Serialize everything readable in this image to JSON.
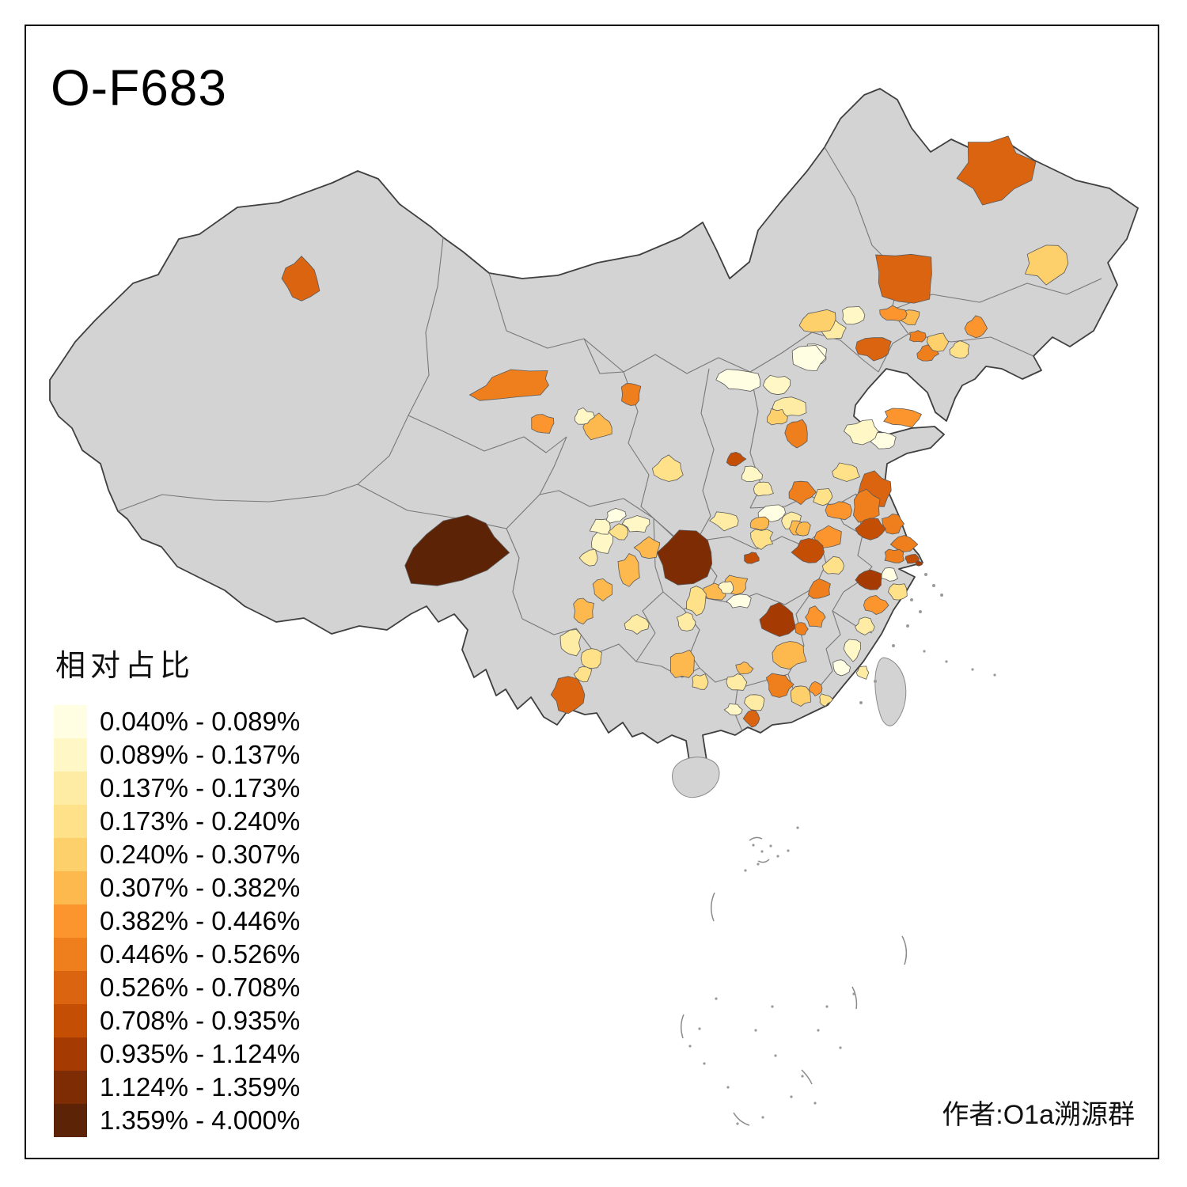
{
  "title": "O-F683",
  "attribution": "作者:O1a溯源群",
  "legend": {
    "title": "相对占比",
    "classes": [
      {
        "label": "0.040% - 0.089%",
        "color": "#FFFDE2"
      },
      {
        "label": "0.089% - 0.137%",
        "color": "#FFF7C5"
      },
      {
        "label": "0.137% - 0.173%",
        "color": "#FEECA4"
      },
      {
        "label": "0.173% - 0.240%",
        "color": "#FEE189"
      },
      {
        "label": "0.240% - 0.307%",
        "color": "#FDD06C"
      },
      {
        "label": "0.307% - 0.382%",
        "color": "#FDB84E"
      },
      {
        "label": "0.382% - 0.446%",
        "color": "#FC952E"
      },
      {
        "label": "0.446% - 0.526%",
        "color": "#EF7E1D"
      },
      {
        "label": "0.526% - 0.708%",
        "color": "#DB6410"
      },
      {
        "label": "0.708% - 0.935%",
        "color": "#C44E04"
      },
      {
        "label": "0.935% - 1.124%",
        "color": "#A53A03"
      },
      {
        "label": "1.124% - 1.359%",
        "color": "#7E2C04"
      },
      {
        "label": "1.359% - 4.000%",
        "color": "#5D2306"
      }
    ]
  },
  "map": {
    "base_color": "#D3D3D3",
    "country_border_color": "#3F3F3F",
    "province_border_color": "#737373",
    "patch_border_color": "#5A5A5A",
    "sea_color": "#FFFFFF",
    "patches": [
      [
        "heihe",
        1258,
        215,
        44,
        40,
        -12,
        9
      ],
      [
        "qiqihar",
        1143,
        352,
        42,
        33,
        15,
        9
      ],
      [
        "jiamusi",
        1322,
        333,
        27,
        23,
        0,
        5
      ],
      [
        "suihua-s",
        1148,
        400,
        14,
        10,
        0,
        6
      ],
      [
        "baicheng",
        1050,
        415,
        17,
        12,
        20,
        3
      ],
      [
        "daqing",
        1078,
        398,
        14,
        11,
        0,
        2
      ],
      [
        "tongliao",
        1030,
        448,
        16,
        13,
        0,
        1
      ],
      [
        "jinzhou",
        1104,
        440,
        21,
        14,
        0,
        9
      ],
      [
        "fushun",
        1160,
        425,
        10,
        8,
        0,
        8
      ],
      [
        "liaoyang",
        1172,
        447,
        12,
        10,
        0,
        8
      ],
      [
        "tieling",
        1185,
        432,
        12,
        11,
        0,
        5
      ],
      [
        "benxi",
        1213,
        442,
        12,
        10,
        0,
        4
      ],
      [
        "dandong",
        1233,
        415,
        12,
        14,
        0,
        7
      ],
      [
        "changchun-w",
        1128,
        397,
        16,
        9,
        0,
        7
      ],
      [
        "chengde",
        1035,
        407,
        22,
        14,
        -10,
        5
      ],
      [
        "beijing",
        1020,
        452,
        20,
        16,
        0,
        1
      ],
      [
        "langfang",
        983,
        487,
        16,
        12,
        0,
        2
      ],
      [
        "hohhot",
        933,
        480,
        26,
        14,
        0,
        1
      ],
      [
        "xinzhou",
        1000,
        515,
        20,
        12,
        0,
        3
      ],
      [
        "shijiazhuang",
        982,
        527,
        12,
        10,
        0,
        5
      ],
      [
        "xingtai-handan",
        1007,
        547,
        13,
        18,
        0,
        8
      ],
      [
        "jinchenig-dark",
        930,
        580,
        12,
        8,
        0,
        10
      ],
      [
        "luoyang",
        950,
        600,
        14,
        10,
        0,
        2
      ],
      [
        "zhengzhou-e",
        965,
        618,
        12,
        9,
        0,
        3
      ],
      [
        "yantai-weihai",
        1140,
        528,
        23,
        11,
        5,
        7
      ],
      [
        "jinan",
        1090,
        545,
        20,
        14,
        0,
        2
      ],
      [
        "weifang",
        1118,
        558,
        16,
        11,
        0,
        1
      ],
      [
        "jining",
        1070,
        596,
        16,
        11,
        0,
        4
      ],
      [
        "linyi-lianyungang",
        1105,
        620,
        22,
        21,
        0,
        9
      ],
      [
        "shangqiu-xuzhou",
        1012,
        622,
        16,
        14,
        0,
        8
      ],
      [
        "zhoukou",
        975,
        648,
        16,
        10,
        0,
        1
      ],
      [
        "fuyang",
        1000,
        658,
        12,
        10,
        0,
        3
      ],
      [
        "xinyang",
        960,
        662,
        12,
        9,
        0,
        6
      ],
      [
        "yancheng",
        1095,
        641,
        18,
        19,
        0,
        8
      ],
      [
        "nantong",
        1128,
        662,
        14,
        12,
        0,
        8
      ],
      [
        "yangzhou-dark",
        1100,
        668,
        16,
        12,
        0,
        10
      ],
      [
        "huaian",
        1060,
        645,
        14,
        12,
        0,
        7
      ],
      [
        "suqian",
        1040,
        628,
        12,
        10,
        0,
        4
      ],
      [
        "suzhou-wuxi",
        1143,
        688,
        15,
        10,
        0,
        8
      ],
      [
        "shanghai",
        1152,
        706,
        9,
        6,
        0,
        10
      ],
      [
        "shanghai-island",
        1161,
        712,
        4,
        3,
        0,
        11
      ],
      [
        "hefei",
        1047,
        680,
        16,
        14,
        0,
        7
      ],
      [
        "bengbu",
        1008,
        668,
        12,
        10,
        0,
        6
      ],
      [
        "anqing-dark",
        1022,
        698,
        18,
        15,
        0,
        10
      ],
      [
        "xuancheng",
        1053,
        715,
        12,
        10,
        0,
        4
      ],
      [
        "jiujiang",
        1035,
        745,
        14,
        12,
        0,
        8
      ],
      [
        "shangrao",
        1030,
        780,
        13,
        12,
        0,
        7
      ],
      [
        "hangzhou-dark",
        1100,
        733,
        16,
        13,
        0,
        11
      ],
      [
        "huzhou",
        1124,
        726,
        10,
        8,
        0,
        1
      ],
      [
        "jiaxing",
        1130,
        703,
        12,
        9,
        0,
        8
      ],
      [
        "ningbo",
        1136,
        748,
        12,
        10,
        0,
        4
      ],
      [
        "jinhua",
        1107,
        765,
        14,
        11,
        0,
        7
      ],
      [
        "quzhou",
        1093,
        792,
        12,
        10,
        0,
        3
      ],
      [
        "ningde",
        1078,
        820,
        10,
        14,
        0,
        2
      ],
      [
        "fuzhou",
        1063,
        843,
        10,
        10,
        0,
        1
      ],
      [
        "putian",
        1090,
        850,
        8,
        8,
        0,
        3
      ],
      [
        "enshi-dark",
        868,
        706,
        36,
        31,
        -15,
        12
      ],
      [
        "jingmen-dark",
        950,
        705,
        10,
        7,
        0,
        10
      ],
      [
        "yichang",
        930,
        738,
        14,
        11,
        0,
        6
      ],
      [
        "changde",
        903,
        748,
        16,
        10,
        0,
        6
      ],
      [
        "jingzhou",
        935,
        760,
        16,
        8,
        0,
        1
      ],
      [
        "shiyan",
        915,
        658,
        16,
        11,
        0,
        3
      ],
      [
        "xiangyang",
        962,
        680,
        14,
        12,
        0,
        4
      ],
      [
        "suizhou",
        1015,
        668,
        10,
        8,
        0,
        6
      ],
      [
        "nanchang-dark",
        985,
        783,
        22,
        19,
        0,
        11
      ],
      [
        "yingtan",
        1013,
        795,
        8,
        8,
        0,
        8
      ],
      [
        "ganzhou",
        998,
        825,
        20,
        18,
        0,
        6
      ],
      [
        "yueyang",
        880,
        760,
        12,
        16,
        0,
        4
      ],
      [
        "loudi",
        868,
        786,
        12,
        10,
        0,
        3
      ],
      [
        "huaihua",
        862,
        840,
        16,
        18,
        0,
        6
      ],
      [
        "yongzhou",
        885,
        862,
        10,
        10,
        0,
        4
      ],
      [
        "changsha",
        918,
        742,
        10,
        8,
        0,
        2
      ],
      [
        "zunyi",
        820,
        692,
        16,
        12,
        0,
        6
      ],
      [
        "qiannan",
        795,
        720,
        14,
        18,
        0,
        6
      ],
      [
        "bijie",
        760,
        685,
        14,
        14,
        0,
        2
      ],
      [
        "liupanshui",
        745,
        705,
        12,
        10,
        0,
        3
      ],
      [
        "qianxinan",
        805,
        788,
        14,
        12,
        0,
        3
      ],
      [
        "garze-dark",
        572,
        695,
        64,
        42,
        -18,
        13
      ],
      [
        "mianyang",
        760,
        665,
        14,
        10,
        0,
        2
      ],
      [
        "deyang",
        778,
        652,
        12,
        9,
        0,
        1
      ],
      [
        "suining",
        782,
        672,
        12,
        10,
        0,
        4
      ],
      [
        "panzhihua-n",
        762,
        745,
        14,
        13,
        0,
        6
      ],
      [
        "xichang",
        737,
        772,
        13,
        16,
        0,
        6
      ],
      [
        "yibin",
        720,
        812,
        14,
        16,
        0,
        3
      ],
      [
        "luzhou",
        748,
        832,
        12,
        12,
        0,
        4
      ],
      [
        "kunming-dark",
        718,
        878,
        21,
        20,
        0,
        9
      ],
      [
        "qujing",
        737,
        852,
        10,
        10,
        0,
        4
      ],
      [
        "guilin",
        932,
        862,
        12,
        10,
        0,
        3
      ],
      [
        "hezhou",
        940,
        845,
        10,
        8,
        0,
        6
      ],
      [
        "shaoguan",
        985,
        865,
        16,
        14,
        0,
        8
      ],
      [
        "wuzhou",
        955,
        888,
        12,
        10,
        0,
        3
      ],
      [
        "heyuan",
        1012,
        880,
        12,
        12,
        0,
        5
      ],
      [
        "guangzhou-dark",
        950,
        908,
        9,
        10,
        0,
        9
      ],
      [
        "zhaoqing",
        927,
        897,
        10,
        8,
        0,
        2
      ],
      [
        "chaozhou",
        1030,
        870,
        8,
        8,
        0,
        7
      ],
      [
        "shanwei",
        1043,
        884,
        8,
        7,
        0,
        4
      ],
      [
        "shihezi-dark",
        381,
        352,
        23,
        27,
        0,
        9
      ],
      [
        "hexi-corridor",
        650,
        487,
        50,
        18,
        -12,
        8
      ],
      [
        "xining",
        686,
        535,
        14,
        12,
        0,
        7
      ],
      [
        "lanzhou",
        757,
        540,
        18,
        16,
        0,
        6
      ],
      [
        "baiyin",
        737,
        527,
        12,
        10,
        0,
        2
      ],
      [
        "yinchuan",
        797,
        498,
        13,
        17,
        0,
        8
      ],
      [
        "xianyang",
        845,
        592,
        18,
        14,
        0,
        4
      ],
      [
        "hanzhong",
        805,
        662,
        16,
        10,
        0,
        2
      ]
    ]
  },
  "chart_data": {
    "type": "choropleth_map",
    "title": "O-F683",
    "legend_title": "相对占比",
    "breaks": [
      "0.040%",
      "0.089%",
      "0.137%",
      "0.173%",
      "0.240%",
      "0.307%",
      "0.382%",
      "0.446%",
      "0.526%",
      "0.708%",
      "0.935%",
      "1.124%",
      "1.359%",
      "4.000%"
    ],
    "colors": [
      "#FFFDE2",
      "#FFF7C5",
      "#FEECA4",
      "#FEE189",
      "#FDD06C",
      "#FDB84E",
      "#FC952E",
      "#EF7E1D",
      "#DB6410",
      "#C44E04",
      "#A53A03",
      "#7E2C04",
      "#5D2306"
    ],
    "no_data_color": "#D3D3D3",
    "annotation": "作者:O1a溯源群"
  }
}
